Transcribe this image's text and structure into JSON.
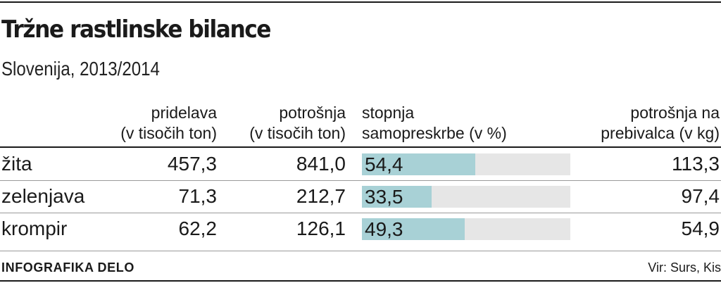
{
  "title": "Tržne rastlinske bilance",
  "subtitle": "Slovenija, 2013/2014",
  "headers": {
    "production": [
      "pridelava",
      "(v tisočih ton)"
    ],
    "consumption": [
      "potrošnja",
      "(v tisočih ton)"
    ],
    "self_sufficiency": [
      "stopnja",
      "samopreskrbe (v %)"
    ],
    "per_capita": [
      "potrošnja na",
      "prebivalca (v kg)"
    ]
  },
  "footer": {
    "credit": "INFOGRAFIKA DELO",
    "source": "Vir: Surs, Kis"
  },
  "chart_data": {
    "type": "table",
    "title": "Tržne rastlinske bilance",
    "subtitle": "Slovenija, 2013/2014",
    "columns": [
      "pridelava (v tisočih ton)",
      "potrošnja (v tisočih ton)",
      "stopnja samopreskrbe (v %)",
      "potrošnja na prebivalca (v kg)"
    ],
    "bar_max": 100,
    "colors": {
      "bar_fill": "#a8d1d6",
      "bar_track": "#e6e6e6",
      "text": "#1a1a1a"
    },
    "rows": [
      {
        "name": "žita",
        "production": "457,3",
        "consumption": "841,0",
        "self_sufficiency": "54,4",
        "self_sufficiency_value": 54.4,
        "per_capita": "113,3"
      },
      {
        "name": "zelenjava",
        "production": "71,3",
        "consumption": "212,7",
        "self_sufficiency": "33,5",
        "self_sufficiency_value": 33.5,
        "per_capita": "97,4"
      },
      {
        "name": "krompir",
        "production": "62,2",
        "consumption": "126,1",
        "self_sufficiency": "49,3",
        "self_sufficiency_value": 49.3,
        "per_capita": "54,9"
      }
    ]
  }
}
